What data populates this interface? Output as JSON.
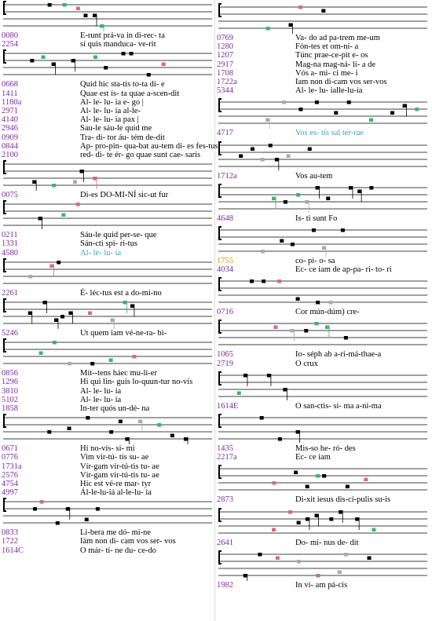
{
  "columns": [
    {
      "blocks": [
        {
          "rows": [
            {
              "id": "0080",
              "text": "E-runt prá-va in di-rec- ta"
            },
            {
              "id": "2254",
              "text": "sí quis manduca- ve-rit"
            }
          ]
        },
        {
          "rows": [
            {
              "id": "0668",
              "text": "Quid hic sta-tis to-ta di- e"
            },
            {
              "id": "1411",
              "text": "Quae est ís- ta quae a-scen-dit"
            },
            {
              "id": "1180a",
              "text": "Al- le- lu- ia e- go |"
            },
            {
              "id": "2971",
              "text": "Al- le- lu- ia al-le-"
            },
            {
              "id": "4140",
              "text": "Al- le- lu- ia pax |"
            },
            {
              "id": "2946",
              "text": "Sau-le sáu-le quid me"
            },
            {
              "id": "0909",
              "text": "Tra- di- tor áu- tém de-dit"
            },
            {
              "id": "0844",
              "text": "Ap- pro-pin- qua-bat au-tem di- es fes-tus"
            },
            {
              "id": "2100",
              "text": "red- di- te ér- go quae sunt cae- saris"
            }
          ]
        },
        {
          "rows": [
            {
              "id": "0075",
              "text": "Di-es DO-MI-NÍ sic-ut fur"
            }
          ]
        },
        {
          "rows": [
            {
              "id": "0211",
              "text": "Sáu-le quid per-se- que"
            },
            {
              "id": "1331",
              "text": "Sán-cti spi- ri-tus"
            },
            {
              "id": "4580",
              "text": "Al- le- lu- ia",
              "color": "#3a9fd0"
            }
          ]
        },
        {
          "rows": [
            {
              "id": "2261",
              "text": "É- léc-tus est a do-mi-no"
            }
          ]
        },
        {
          "rows": [
            {
              "id": "5246",
              "text": "Ut quem iam vé-ne-ra- bi-"
            }
          ]
        },
        {
          "rows": [
            {
              "id": "0856",
              "text": "Mít--tens háec mu-li-er"
            },
            {
              "id": "1296",
              "text": "Hi qui lin- guis lo-quun-tur no-vis"
            },
            {
              "id": "3810",
              "text": "Al- le- lu- ia"
            },
            {
              "id": "5102",
              "text": "Al- le- lu- ia"
            },
            {
              "id": "1858",
              "text": "In-ter quós un-dé- na"
            }
          ]
        },
        {
          "rows": [
            {
              "id": "0671",
              "text": "Hí no-vís- si- mi"
            },
            {
              "id": "0776",
              "text": "Vim vir-tú- tis su- ae"
            },
            {
              "id": "1731a",
              "text": "Vír-gam vír-tú-tis tu- ae"
            },
            {
              "id": "2576",
              "text": "Vír-gam vír-tú-tis tu- ae"
            },
            {
              "id": "4754",
              "text": "Híc est vé-re mar- tyr"
            },
            {
              "id": "4997",
              "text": "Ál-le-lu-iá al-le-lu- ia"
            }
          ]
        },
        {
          "rows": [
            {
              "id": "0833",
              "text": "Lí-bera me dó- mi-ne"
            },
            {
              "id": "1722",
              "text": "Iám non dí- cam vos ser- vos"
            },
            {
              "id": "1614C",
              "text": "O már- tí- ne du- ce-do"
            }
          ]
        }
      ]
    },
    {
      "blocks": [
        {
          "rows": [
            {
              "id": "0769",
              "text": "Va- do ad pa-trem me-um"
            },
            {
              "id": "1280",
              "text": "Fón-tes et om-ni- a"
            },
            {
              "id": "1207",
              "text": "Túnc prae-ce-pit e- os"
            },
            {
              "id": "2917",
              "text": "Mag-na mag-ná- li- a de"
            },
            {
              "id": "1708",
              "text": "Vós a- mi- ci me- i"
            },
            {
              "id": "1722a",
              "text": "Iam non di-cam vos ser-vos"
            },
            {
              "id": "5344",
              "text": "Al- le- lu- ialle-lu-ia"
            }
          ]
        },
        {
          "rows": [
            {
              "id": "4717",
              "text": "Vos es- tis sal ter-rae",
              "color": "#3a9fd0"
            }
          ]
        },
        {
          "rows": [
            {
              "id": "1712a",
              "text": "Vos au-tem"
            }
          ]
        },
        {
          "rows": [
            {
              "id": "4648",
              "text": "Is- ti sunt Fo"
            }
          ]
        },
        {
          "rows": [
            {
              "id": "1755",
              "text": "co- pi- o- sa",
              "id_color": "#c8a000"
            },
            {
              "id": "4034",
              "text": "Ec- ce iam de ap-pa- ri- to- ri"
            }
          ]
        },
        {
          "rows": [
            {
              "id": "0716",
              "text": "Cor mún-dúm) cre-"
            }
          ]
        },
        {
          "rows": [
            {
              "id": "1065",
              "text": "Io- séph ab a-ri-má-thae-a"
            },
            {
              "id": "2719",
              "text": "O crux"
            }
          ]
        },
        {
          "rows": [
            {
              "id": "1614E",
              "text": "O san-ctis- si- ma a-ni-ma"
            }
          ]
        },
        {
          "rows": [
            {
              "id": "1435",
              "text": "Mis-so he- ró- des"
            },
            {
              "id": "2217a",
              "text": "Ec- ce iam"
            }
          ]
        },
        {
          "rows": [
            {
              "id": "2873",
              "text": "Di-xit iesus dis-cí-pulis su-is"
            }
          ]
        },
        {
          "rows": [
            {
              "id": "2641",
              "text": "Do- mi- nus de- dit"
            }
          ]
        },
        {
          "rows": [
            {
              "id": "1982",
              "text": "In vi- am pá-cis"
            }
          ]
        }
      ]
    }
  ]
}
